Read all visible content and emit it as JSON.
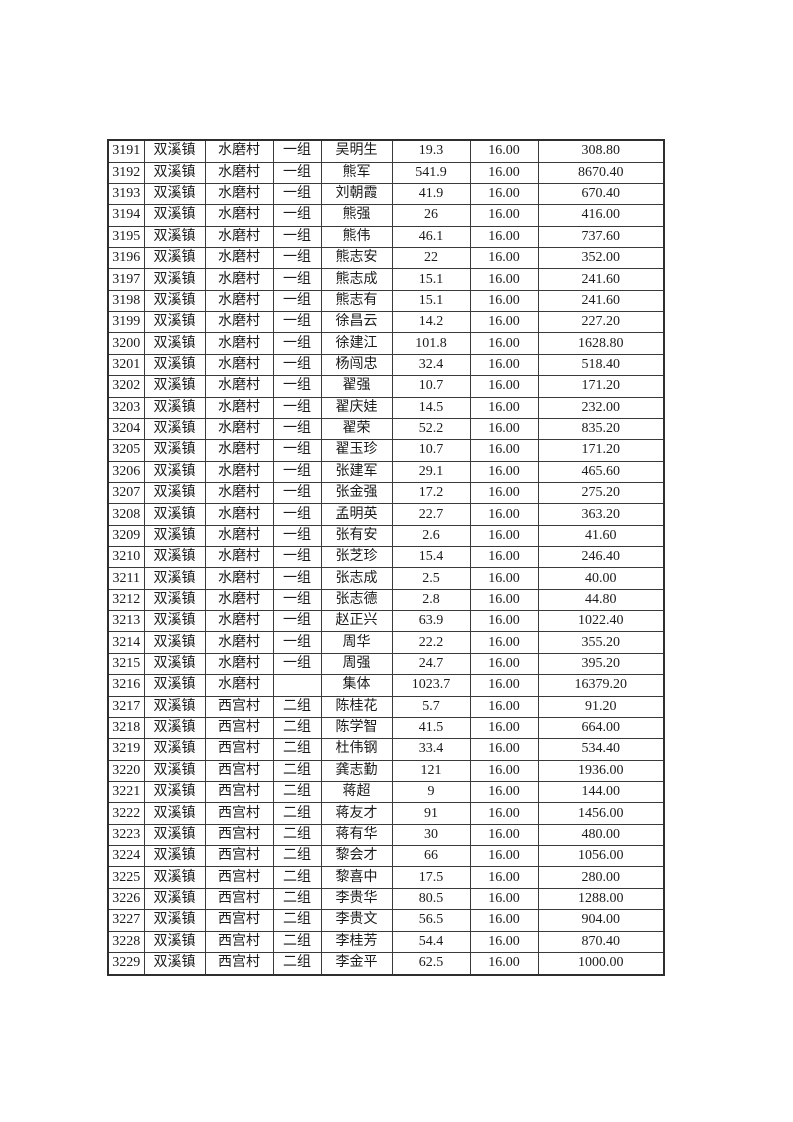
{
  "document": {
    "background_color": "#ffffff",
    "text_color": "#1b1b1b",
    "border_color": "#3a3a3a"
  },
  "table": {
    "column_keys": [
      "serial_no",
      "town",
      "village",
      "group",
      "name",
      "quantity",
      "unit_price",
      "amount"
    ],
    "rows": [
      [
        "3191",
        "双溪镇",
        "水磨村",
        "一组",
        "吴明生",
        "19.3",
        "16.00",
        "308.80"
      ],
      [
        "3192",
        "双溪镇",
        "水磨村",
        "一组",
        "熊军",
        "541.9",
        "16.00",
        "8670.40"
      ],
      [
        "3193",
        "双溪镇",
        "水磨村",
        "一组",
        "刘朝霞",
        "41.9",
        "16.00",
        "670.40"
      ],
      [
        "3194",
        "双溪镇",
        "水磨村",
        "一组",
        "熊强",
        "26",
        "16.00",
        "416.00"
      ],
      [
        "3195",
        "双溪镇",
        "水磨村",
        "一组",
        "熊伟",
        "46.1",
        "16.00",
        "737.60"
      ],
      [
        "3196",
        "双溪镇",
        "水磨村",
        "一组",
        "熊志安",
        "22",
        "16.00",
        "352.00"
      ],
      [
        "3197",
        "双溪镇",
        "水磨村",
        "一组",
        "熊志成",
        "15.1",
        "16.00",
        "241.60"
      ],
      [
        "3198",
        "双溪镇",
        "水磨村",
        "一组",
        "熊志有",
        "15.1",
        "16.00",
        "241.60"
      ],
      [
        "3199",
        "双溪镇",
        "水磨村",
        "一组",
        "徐昌云",
        "14.2",
        "16.00",
        "227.20"
      ],
      [
        "3200",
        "双溪镇",
        "水磨村",
        "一组",
        "徐建江",
        "101.8",
        "16.00",
        "1628.80"
      ],
      [
        "3201",
        "双溪镇",
        "水磨村",
        "一组",
        "杨闯忠",
        "32.4",
        "16.00",
        "518.40"
      ],
      [
        "3202",
        "双溪镇",
        "水磨村",
        "一组",
        "翟强",
        "10.7",
        "16.00",
        "171.20"
      ],
      [
        "3203",
        "双溪镇",
        "水磨村",
        "一组",
        "翟庆娃",
        "14.5",
        "16.00",
        "232.00"
      ],
      [
        "3204",
        "双溪镇",
        "水磨村",
        "一组",
        "翟荣",
        "52.2",
        "16.00",
        "835.20"
      ],
      [
        "3205",
        "双溪镇",
        "水磨村",
        "一组",
        "翟玉珍",
        "10.7",
        "16.00",
        "171.20"
      ],
      [
        "3206",
        "双溪镇",
        "水磨村",
        "一组",
        "张建军",
        "29.1",
        "16.00",
        "465.60"
      ],
      [
        "3207",
        "双溪镇",
        "水磨村",
        "一组",
        "张金强",
        "17.2",
        "16.00",
        "275.20"
      ],
      [
        "3208",
        "双溪镇",
        "水磨村",
        "一组",
        "孟明英",
        "22.7",
        "16.00",
        "363.20"
      ],
      [
        "3209",
        "双溪镇",
        "水磨村",
        "一组",
        "张有安",
        "2.6",
        "16.00",
        "41.60"
      ],
      [
        "3210",
        "双溪镇",
        "水磨村",
        "一组",
        "张芝珍",
        "15.4",
        "16.00",
        "246.40"
      ],
      [
        "3211",
        "双溪镇",
        "水磨村",
        "一组",
        "张志成",
        "2.5",
        "16.00",
        "40.00"
      ],
      [
        "3212",
        "双溪镇",
        "水磨村",
        "一组",
        "张志德",
        "2.8",
        "16.00",
        "44.80"
      ],
      [
        "3213",
        "双溪镇",
        "水磨村",
        "一组",
        "赵正兴",
        "63.9",
        "16.00",
        "1022.40"
      ],
      [
        "3214",
        "双溪镇",
        "水磨村",
        "一组",
        "周华",
        "22.2",
        "16.00",
        "355.20"
      ],
      [
        "3215",
        "双溪镇",
        "水磨村",
        "一组",
        "周强",
        "24.7",
        "16.00",
        "395.20"
      ],
      [
        "3216",
        "双溪镇",
        "水磨村",
        "",
        "集体",
        "1023.7",
        "16.00",
        "16379.20"
      ],
      [
        "3217",
        "双溪镇",
        "西宫村",
        "二组",
        "陈桂花",
        "5.7",
        "16.00",
        "91.20"
      ],
      [
        "3218",
        "双溪镇",
        "西宫村",
        "二组",
        "陈学智",
        "41.5",
        "16.00",
        "664.00"
      ],
      [
        "3219",
        "双溪镇",
        "西宫村",
        "二组",
        "杜伟钢",
        "33.4",
        "16.00",
        "534.40"
      ],
      [
        "3220",
        "双溪镇",
        "西宫村",
        "二组",
        "龚志勤",
        "121",
        "16.00",
        "1936.00"
      ],
      [
        "3221",
        "双溪镇",
        "西宫村",
        "二组",
        "蒋超",
        "9",
        "16.00",
        "144.00"
      ],
      [
        "3222",
        "双溪镇",
        "西宫村",
        "二组",
        "蒋友才",
        "91",
        "16.00",
        "1456.00"
      ],
      [
        "3223",
        "双溪镇",
        "西宫村",
        "二组",
        "蒋有华",
        "30",
        "16.00",
        "480.00"
      ],
      [
        "3224",
        "双溪镇",
        "西宫村",
        "二组",
        "黎会才",
        "66",
        "16.00",
        "1056.00"
      ],
      [
        "3225",
        "双溪镇",
        "西宫村",
        "二组",
        "黎喜中",
        "17.5",
        "16.00",
        "280.00"
      ],
      [
        "3226",
        "双溪镇",
        "西宫村",
        "二组",
        "李贵华",
        "80.5",
        "16.00",
        "1288.00"
      ],
      [
        "3227",
        "双溪镇",
        "西宫村",
        "二组",
        "李贵文",
        "56.5",
        "16.00",
        "904.00"
      ],
      [
        "3228",
        "双溪镇",
        "西宫村",
        "二组",
        "李桂芳",
        "54.4",
        "16.00",
        "870.40"
      ],
      [
        "3229",
        "双溪镇",
        "西宫村",
        "二组",
        "李金平",
        "62.5",
        "16.00",
        "1000.00"
      ]
    ]
  }
}
